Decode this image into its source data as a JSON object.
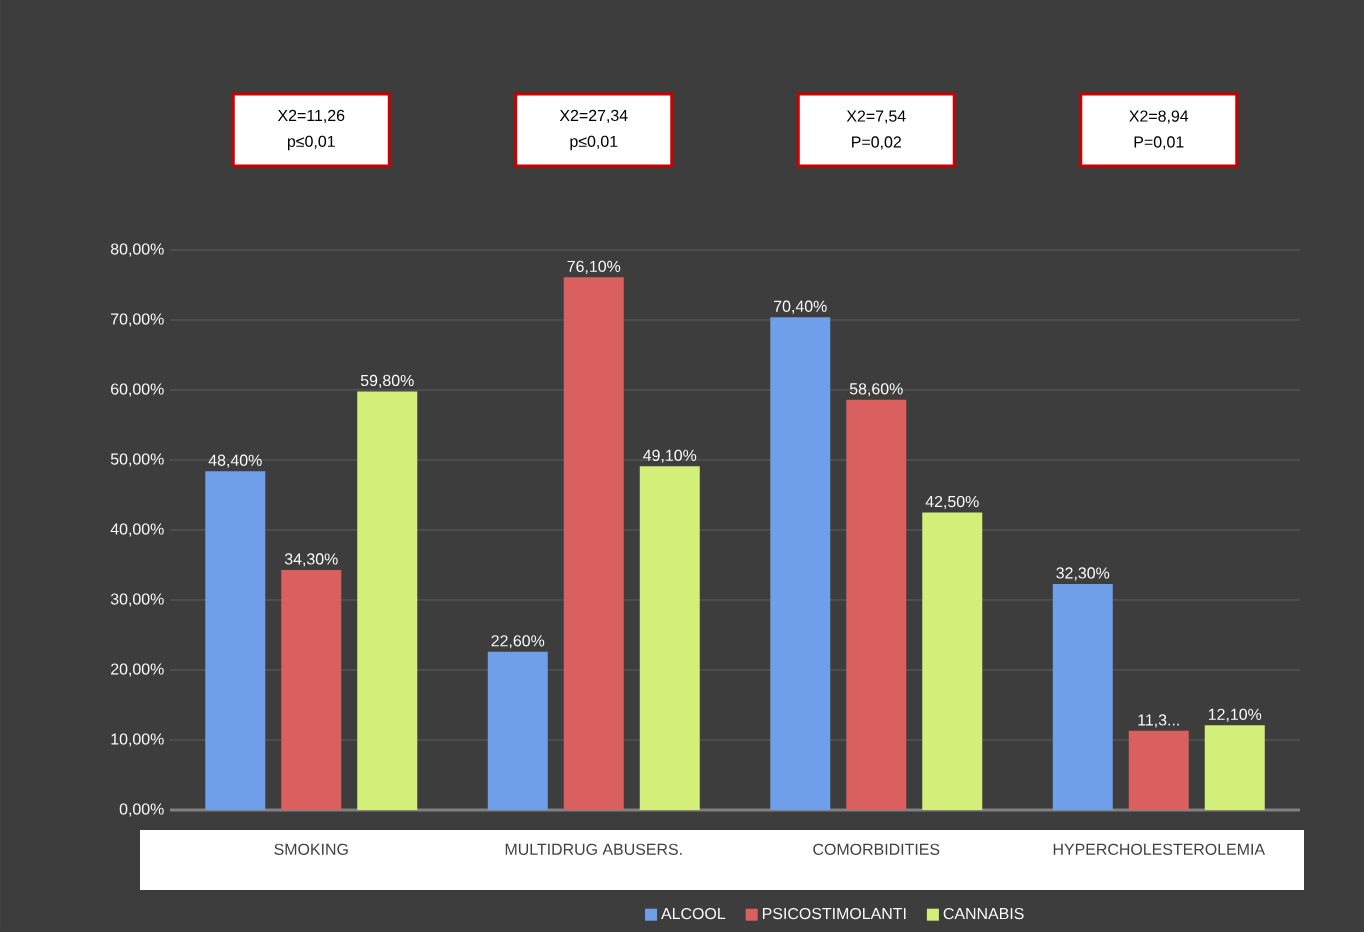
{
  "chart_data": {
    "type": "bar",
    "categories": [
      "SMOKING",
      "MULTIDRUG ABUSERS.",
      "COMORBIDITIES",
      "HYPERCHOLESTEROLEMIA"
    ],
    "series": [
      {
        "name": "ALCOOL",
        "color": "#6e9fe8",
        "values": [
          48.4,
          22.6,
          70.4,
          32.3
        ],
        "value_labels": [
          "48,40%",
          "22,60%",
          "70,40%",
          "32,30%"
        ]
      },
      {
        "name": "PSICOSTIMOLANTI",
        "color": "#d9605e",
        "values": [
          34.3,
          76.1,
          58.6,
          11.3
        ],
        "value_labels": [
          "34,30%",
          "76,10%",
          "58,60%",
          "11,3..."
        ]
      },
      {
        "name": "CANNABIS",
        "color": "#d4ee7a",
        "values": [
          59.8,
          49.1,
          42.5,
          12.1
        ],
        "value_labels": [
          "59,80%",
          "49,10%",
          "42,50%",
          "12,10%"
        ]
      }
    ],
    "ylim": [
      0,
      80
    ],
    "yticks": [
      {
        "value": 0,
        "label": "0,00%"
      },
      {
        "value": 10,
        "label": "10,00%"
      },
      {
        "value": 20,
        "label": "20,00%"
      },
      {
        "value": 30,
        "label": "30,00%"
      },
      {
        "value": 40,
        "label": "40,00%"
      },
      {
        "value": 50,
        "label": "50,00%"
      },
      {
        "value": 60,
        "label": "60,00%"
      },
      {
        "value": 70,
        "label": "70,00%"
      },
      {
        "value": 80,
        "label": "80,00%"
      }
    ],
    "grid": "y",
    "legend": "bottom",
    "annotations": [
      "X2=11,26",
      "p≤0,01",
      "X2=27,34",
      "p≤0,01",
      "X2=7,54",
      "P=0,02",
      "X2=8,94",
      "P=0,01"
    ]
  }
}
